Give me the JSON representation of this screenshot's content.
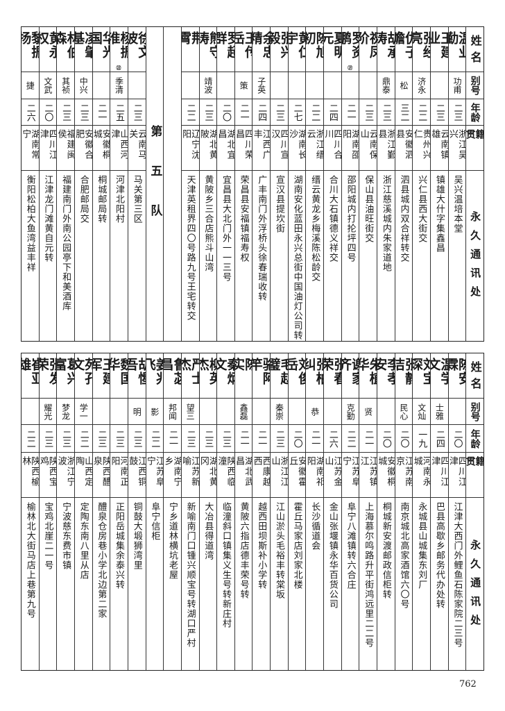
{
  "header": {
    "name": "姓名",
    "alias": "别号",
    "age": "年龄",
    "origin": "籍贯",
    "address": "永久通讯处"
  },
  "top_table": {
    "right_group": [
      {
        "name": "温业勤",
        "alias": "功甫",
        "age": "二三",
        "origin": "浙江吴兴",
        "address": "吴兴温培本堂"
      },
      {
        "name": "王建业",
        "alias": "",
        "age": "二三",
        "origin": "云南镇雄",
        "address": "镇雄大什字集鑫昌"
      },
      {
        "name": "张经亮",
        "alias": "济永",
        "age": "二二",
        "origin": "贵州兴仁",
        "address": "兴仁县西大街交"
      },
      {
        "name": "仇子瞻",
        "alias": "松",
        "age": "三二",
        "origin": "安徽泗县",
        "address": "泗县城内双合祥转交"
      },
      {
        "name": "胡承涛",
        "alias": "鼎泰",
        "age": "二三",
        "origin": "浙江鄞县",
        "address": "浙江慈溪城内朱家道地"
      },
      {
        "name": "祝凤阶",
        "alias": "",
        "age": "二三",
        "origin": "云南保山",
        "address": "保山县油旺街交"
      },
      {
        "name": "罗资鹏",
        "note": "㉑",
        "alias": "",
        "age": "二一",
        "origin": "湖南邵阳",
        "address": "邵阳城内打抡坪四号"
      },
      {
        "name": "夏明元",
        "alias": "",
        "age": "二四",
        "origin": "四川合川",
        "address": "合川大石镇德义祥交"
      },
      {
        "name": "陈旭初",
        "alias": "",
        "age": "二二",
        "origin": "浙江缙云",
        "address": "缙云黄龙乡梅溪陈松龄交"
      },
      {
        "name": "黄仁宇",
        "alias": "",
        "age": "二七",
        "origin": "湖南长沙",
        "address": "湖南安化蓝田永兴总街中国油灯公司转"
      },
      {
        "name": "张兴毅",
        "alias": "",
        "age": "二三",
        "origin": "四川宣汉",
        "address": "宣汉县提坎街"
      },
      {
        "name": "余忠精",
        "alias": "子英",
        "age": "二四",
        "origin": "江西广丰",
        "address": "广丰南门外浮桥头徐春瑞收转"
      },
      {
        "name": "王传岳",
        "alias": "策",
        "age": "二一",
        "origin": "四川荣昌",
        "address": "荣昌县安福镇福寿权"
      },
      {
        "name": "罗超群",
        "alias": "",
        "age": "二〇",
        "origin": "湖北宜昌",
        "address": "宜昌县大北门外一一三号"
      },
      {
        "name": "熊守涛",
        "alias": "靖波",
        "age": "二三",
        "origin": "湖北黄陂",
        "address": "黄陂乡三合店熊斗山湾"
      },
      {
        "name": "荆　霄",
        "alias": "",
        "age": "二二",
        "origin": "辽宁沈阳",
        "address": "天津英租界四〇号路九号王宅转交"
      }
    ],
    "team_label": "第五队",
    "left_group": [
      {
        "name": "徐文波",
        "alias": "",
        "age": "二三",
        "origin": "云南马关",
        "address": "马关第三区"
      },
      {
        "name": "杨振淮",
        "note": "㉒",
        "alias": "季清",
        "age": "二五",
        "origin": "山西河津",
        "address": "河津北阳村"
      },
      {
        "name": "华光国",
        "alias": "",
        "age": "二一",
        "origin": "安徽桐城",
        "address": "桐城邮局转"
      },
      {
        "name": "凌肇基",
        "alias": "中兴",
        "age": "二三",
        "origin": "安徽合肥",
        "address": "合肥邮局交"
      },
      {
        "name": "林伯森",
        "alias": "其祯",
        "age": "二三",
        "origin": "福建闽侯",
        "address": "福建南门外南公园亭下和美酒库"
      },
      {
        "name": "黄永权",
        "alias": "文武",
        "age": "二〇",
        "origin": "四川江津",
        "address": "江津龙门滩黄自元转"
      },
      {
        "name": "黎振扬",
        "alias": "捷",
        "age": "二六",
        "origin": "湖南常宁",
        "address": "衡阳松柏大鱼湾益丰祥"
      }
    ]
  },
  "bottom_table": [
    {
      "name": "陈安霖",
      "alias": "",
      "age": "二〇",
      "origin": "四川江津",
      "address": "江津大西门外鲤鱼石陈家院二三号"
    },
    {
      "name": "温学文",
      "alias": "士雅",
      "age": "二四",
      "origin": "四川江津",
      "address": "巴县高歇乡邮务代办处转"
    },
    {
      "name": "刘宝琛",
      "alias": "文灿",
      "age": "一九",
      "origin": "河南永城",
      "address": "永城县山城集东刘厂"
    },
    {
      "name": "张静洁",
      "alias": "民心",
      "age": "二〇",
      "origin": "江苏南京",
      "address": "南京城北高家酒馆六〇号"
    },
    {
      "name": "李孝安",
      "alias": "",
      "age": "二〇",
      "origin": "安徽桐城",
      "address": "桐城新安渡邮政信柜转"
    },
    {
      "name": "朱植华",
      "alias": "贤",
      "age": "二一",
      "origin": "江苏镇江",
      "address": "上海慕尔鸣路升平街鸿远里二二号"
    },
    {
      "name": "谢家齐",
      "alias": "克勤",
      "age": "二二",
      "origin": "江苏阜宁",
      "address": "阜宁八滩镇转六合庄"
    },
    {
      "name": "张春荣",
      "alias": "",
      "age": "二六",
      "origin": "江苏金山",
      "address": "金山张堰镇永华百货公司"
    },
    {
      "name": "张柏纠",
      "alias": "恭",
      "age": "二一",
      "origin": "湖南祁阳",
      "address": "长沙循道会"
    },
    {
      "name": "刘俊岳",
      "alias": "",
      "age": "二〇",
      "origin": "安徽霍丘",
      "address": "霍丘马家店刘家北楼"
    },
    {
      "name": "毛赵璧",
      "alias": "秦崇",
      "age": "二三",
      "origin": "浙江江山",
      "address": "江山淤头毛裕丰转棠坂"
    },
    {
      "name": "骆阿竿",
      "alias": "",
      "age": "二一",
      "origin": "西康越西",
      "address": "越西田坝斯补小学转"
    },
    {
      "name": "陈　实",
      "alias": "鑫磊",
      "age": "二一",
      "origin": "湖北武昌",
      "address": "黄陂六指店德丰荣号转"
    },
    {
      "name": "秦炳文",
      "alias": "",
      "age": "二三",
      "origin": "陕西临潼",
      "address": "临潼斜口镇集义生号转新庄村"
    },
    {
      "name": "柳英杰",
      "alias": "",
      "age": "二三",
      "origin": "湖北黄冈",
      "address": "大冶县得道湾"
    },
    {
      "name": "严士杰",
      "alias": "望三",
      "age": "二三",
      "origin": "江苏新喻",
      "address": "新喻南门口锺兴顺宝号转湖口严村"
    },
    {
      "name": "鲁苾昌",
      "alias": "邦闻",
      "age": "二一",
      "origin": "湖南宁乡",
      "address": "宁乡道林横坑老屋"
    },
    {
      "name": "姜兆飞",
      "alias": "影",
      "age": "二二",
      "origin": "江苏阜宁",
      "address": "阜宁信柜"
    },
    {
      "name": "胡惺吾",
      "alias": "明",
      "age": "二三",
      "origin": "江西铜鼓",
      "address": "铜鼓大塅狮湾里"
    },
    {
      "name": "魏国华",
      "alias": "",
      "age": "二三",
      "origin": "河南正阳",
      "address": "正阳岳城集余泰兴转"
    },
    {
      "name": "王建军",
      "alias": "",
      "age": "二三",
      "origin": "陕西醴泉",
      "address": "醴泉仓房巷小学北边第二家"
    },
    {
      "name": "苑孔文",
      "alias": "学一",
      "age": "二二",
      "origin": "山西定陶",
      "address": "定陶东南八里从店"
    },
    {
      "name": "葛兴富",
      "alias": "梦龙",
      "age": "二三",
      "origin": "浙江宁波",
      "address": "宁波慈东费市镇"
    },
    {
      "name": "张发荣",
      "alias": "耀光",
      "age": "二三",
      "origin": "陕西宝鸡",
      "address": "宝鸡北崖二一号"
    },
    {
      "name": "崔亚雄",
      "alias": "",
      "age": "二二",
      "origin": "陕西榆林",
      "address": "榆林北大街马店上巷第九号"
    }
  ],
  "page_number": "762"
}
